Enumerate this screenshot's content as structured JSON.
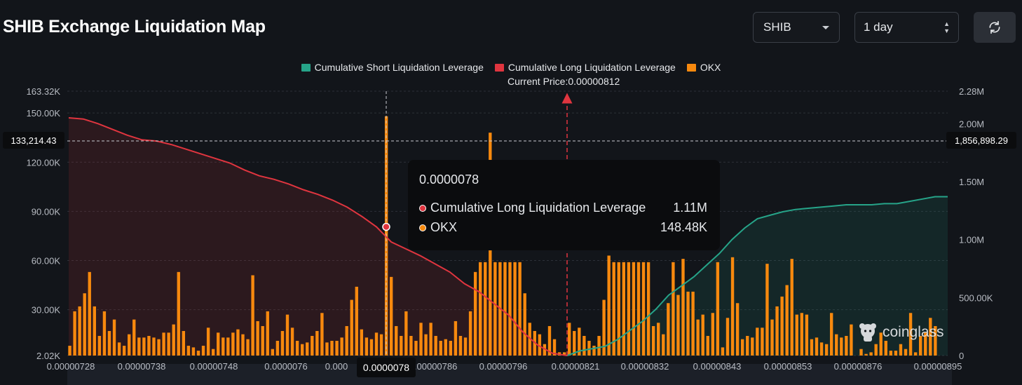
{
  "header": {
    "title": "SHIB Exchange Liquidation Map",
    "symbol_select": "SHIB",
    "range_select": "1 day",
    "refresh_icon": "refresh-icon"
  },
  "legend": {
    "items": [
      {
        "label": "Cumulative Short Liquidation Leverage",
        "color": "#26a489"
      },
      {
        "label": "Cumulative Long Liquidation Leverage",
        "color": "#e0353f"
      },
      {
        "label": "OKX",
        "color": "#f7890e"
      }
    ],
    "current_price": "Current Price:0.00000812"
  },
  "crosshair": {
    "left_value": "133,214.43",
    "right_value": "1,856,898.29",
    "x_label": "0.0000078"
  },
  "tooltip": {
    "title": "0.0000078",
    "rows": [
      {
        "label": "Cumulative Long Liquidation Leverage",
        "value": "1.11M",
        "color": "#e0353f"
      },
      {
        "label": "OKX",
        "value": "148.48K",
        "color": "#f7890e"
      }
    ]
  },
  "watermark": "coinglass",
  "chart_data": {
    "type": "bar",
    "title": "SHIB Exchange Liquidation Map",
    "current_price": 8.12e-06,
    "x_tick_labels": [
      "0.00000728",
      "0.00000738",
      "0.00000748",
      "0.0000076",
      "0.000",
      "0.00000786",
      "0.00000796",
      "0.00000821",
      "0.00000832",
      "0.00000843",
      "0.00000853",
      "0.00000876",
      "0.00000895"
    ],
    "y_left": {
      "ticks": [
        "163.32K",
        "150.00K",
        "120.00K",
        "90.00K",
        "60.00K",
        "30.00K",
        "2.02K"
      ],
      "range": [
        2020,
        163320
      ]
    },
    "y_right": {
      "ticks": [
        "2.28M",
        "2.00M",
        "1.50M",
        "1.00M",
        "500.00K",
        "0"
      ],
      "range": [
        0,
        2280000
      ]
    },
    "series": [
      {
        "name": "OKX",
        "axis": "left",
        "values": [
          8,
          29,
          32,
          40,
          53,
          32,
          14,
          29,
          17,
          24,
          10,
          8,
          15,
          24,
          13,
          13,
          14,
          13,
          12,
          16,
          16,
          21,
          53,
          17,
          8,
          7,
          5,
          8,
          19,
          6,
          16,
          13,
          13,
          16,
          18,
          15,
          12,
          51,
          23,
          20,
          29,
          6,
          11,
          17,
          27,
          19,
          11,
          9,
          10,
          14,
          17,
          28,
          10,
          11,
          11,
          13,
          20,
          36,
          44,
          18,
          13,
          12,
          16,
          15,
          148,
          50,
          20,
          14,
          29,
          14,
          11,
          22,
          15,
          22,
          14,
          11,
          12,
          11,
          23,
          14,
          13,
          29,
          53,
          59,
          59,
          138,
          59,
          59,
          59,
          59,
          59,
          59,
          40,
          22,
          17,
          15,
          9,
          20,
          12,
          4,
          4,
          22,
          17,
          19,
          14,
          11,
          8,
          14,
          36,
          63,
          59,
          59,
          59,
          59,
          59,
          59,
          59,
          59,
          20,
          22,
          15,
          34,
          59,
          39,
          61,
          41,
          41,
          24,
          27,
          14,
          28,
          59,
          7,
          25,
          62,
          34,
          12,
          14,
          13,
          19,
          19,
          58,
          24,
          32,
          38,
          45,
          61,
          27,
          28,
          27,
          12,
          13,
          10,
          9,
          28,
          15,
          13,
          14,
          21,
          2,
          6,
          3,
          4,
          9,
          16,
          11,
          5,
          5,
          9,
          6,
          28,
          4,
          14,
          16,
          25,
          20,
          2,
          1
        ],
        "scale_note": "values in thousands"
      },
      {
        "name": "Cumulative Long Liquidation Leverage",
        "axis": "right",
        "x_range": [
          "0.00000728",
          "0.00000821"
        ],
        "values_M": [
          2.05,
          2.04,
          2.0,
          1.95,
          1.9,
          1.86,
          1.85,
          1.82,
          1.78,
          1.74,
          1.7,
          1.66,
          1.6,
          1.55,
          1.52,
          1.48,
          1.43,
          1.39,
          1.34,
          1.28,
          1.2,
          1.11,
          0.98,
          0.92,
          0.86,
          0.79,
          0.72,
          0.62,
          0.55,
          0.45,
          0.35,
          0.2,
          0.09,
          0.02,
          0.0
        ]
      },
      {
        "name": "Cumulative Short Liquidation Leverage",
        "axis": "right",
        "x_range": [
          "0.00000821",
          "0.00000895"
        ],
        "values_M": [
          0.0,
          0.04,
          0.06,
          0.08,
          0.14,
          0.22,
          0.3,
          0.4,
          0.52,
          0.6,
          0.68,
          0.78,
          0.88,
          1.0,
          1.1,
          1.18,
          1.21,
          1.24,
          1.26,
          1.27,
          1.28,
          1.29,
          1.3,
          1.3,
          1.3,
          1.31,
          1.31,
          1.33,
          1.35,
          1.37,
          1.37
        ]
      }
    ]
  }
}
